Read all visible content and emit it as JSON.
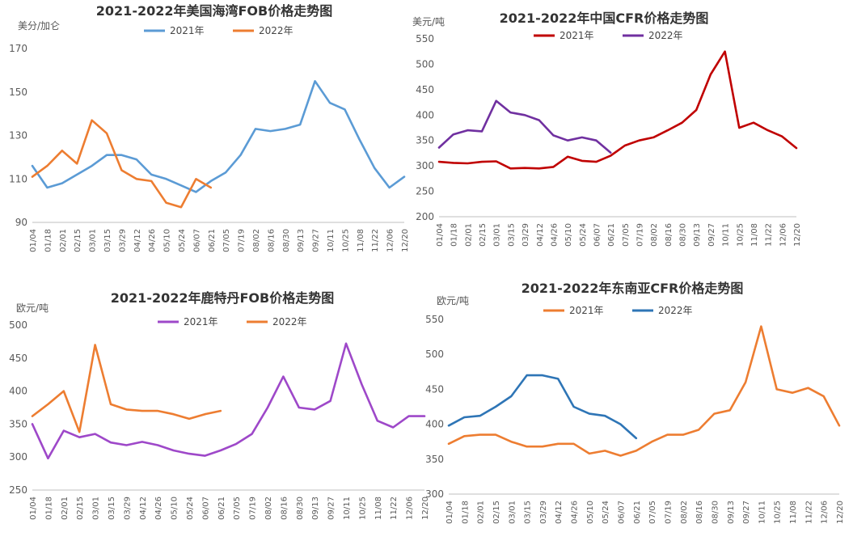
{
  "chart_data": [
    {
      "type": "line",
      "title": "2021-2022年美国海湾FOB价格走势图",
      "ylabel": "美分/加仑",
      "ylim": [
        90,
        170
      ],
      "yticks": [
        90,
        110,
        130,
        150,
        170
      ],
      "grid": false,
      "legend": "top",
      "x": [
        "01/04",
        "01/18",
        "02/01",
        "02/15",
        "03/01",
        "03/15",
        "03/29",
        "04/12",
        "04/26",
        "05/10",
        "05/24",
        "06/07",
        "06/21",
        "07/05",
        "07/19",
        "08/02",
        "08/16",
        "08/30",
        "09/13",
        "09/27",
        "10/11",
        "10/25",
        "11/08",
        "11/22",
        "12/06",
        "12/20"
      ],
      "series": [
        {
          "name": "2021年",
          "color": "#5B9BD5",
          "values": [
            116,
            106,
            108,
            112,
            116,
            121,
            121,
            119,
            112,
            110,
            107,
            104,
            109,
            113,
            121,
            133,
            132,
            133,
            135,
            155,
            145,
            142,
            128,
            115,
            106,
            111
          ]
        },
        {
          "name": "2022年",
          "color": "#ED7D31",
          "values": [
            111,
            116,
            123,
            117,
            137,
            131,
            114,
            110,
            109,
            99,
            97,
            110,
            106,
            null,
            null,
            null,
            null,
            null,
            null,
            null,
            null,
            null,
            null,
            null,
            null,
            null
          ]
        }
      ]
    },
    {
      "type": "line",
      "title": "2021-2022年中国CFR价格走势图",
      "ylabel": "美元/吨",
      "ylim": [
        200,
        550
      ],
      "yticks": [
        200,
        250,
        300,
        350,
        400,
        450,
        500,
        550
      ],
      "grid": false,
      "legend": "top",
      "x": [
        "01/04",
        "01/18",
        "02/01",
        "02/15",
        "03/01",
        "03/15",
        "03/29",
        "04/12",
        "04/26",
        "05/10",
        "05/24",
        "06/07",
        "06/21",
        "07/05",
        "07/19",
        "08/02",
        "08/16",
        "08/30",
        "09/13",
        "09/27",
        "10/11",
        "10/25",
        "11/08",
        "11/22",
        "12/06",
        "12/20"
      ],
      "series": [
        {
          "name": "2021年",
          "color": "#C00000",
          "values": [
            308,
            306,
            305,
            308,
            309,
            295,
            296,
            295,
            298,
            318,
            310,
            308,
            320,
            340,
            350,
            356,
            370,
            385,
            410,
            480,
            525,
            375,
            385,
            370,
            358,
            335
          ]
        },
        {
          "name": "2022年",
          "color": "#7030A0",
          "values": [
            336,
            362,
            370,
            368,
            428,
            405,
            400,
            390,
            360,
            350,
            356,
            350,
            326,
            null,
            null,
            null,
            null,
            null,
            null,
            null,
            null,
            null,
            null,
            null,
            null,
            null
          ]
        }
      ]
    },
    {
      "type": "line",
      "title": "2021-2022年鹿特丹FOB价格走势图",
      "ylabel": "欧元/吨",
      "ylim": [
        250,
        500
      ],
      "yticks": [
        250,
        300,
        350,
        400,
        450,
        500
      ],
      "grid": false,
      "legend": "top",
      "x": [
        "01/04",
        "01/18",
        "02/01",
        "02/15",
        "03/01",
        "03/15",
        "03/29",
        "04/12",
        "04/26",
        "05/10",
        "05/24",
        "06/07",
        "06/21",
        "07/05",
        "07/19",
        "08/02",
        "08/16",
        "08/30",
        "09/13",
        "09/27",
        "10/11",
        "10/25",
        "11/08",
        "11/22",
        "12/06",
        "12/20"
      ],
      "series": [
        {
          "name": "2021年",
          "color": "#9E48C9",
          "values": [
            350,
            298,
            340,
            330,
            335,
            322,
            318,
            323,
            318,
            310,
            305,
            302,
            310,
            320,
            335,
            375,
            422,
            375,
            372,
            385,
            472,
            410,
            355,
            345,
            362,
            362
          ]
        },
        {
          "name": "2022年",
          "color": "#ED7D31",
          "values": [
            362,
            380,
            400,
            338,
            470,
            380,
            372,
            370,
            370,
            365,
            358,
            365,
            370,
            null,
            null,
            null,
            null,
            null,
            null,
            null,
            null,
            null,
            null,
            null,
            null,
            null
          ]
        }
      ]
    },
    {
      "type": "line",
      "title": "2021-2022年东南亚CFR价格走势图",
      "ylabel": "欧元/吨",
      "ylim": [
        300,
        550
      ],
      "yticks": [
        300,
        350,
        400,
        450,
        500,
        550
      ],
      "grid": false,
      "legend": "top",
      "x": [
        "01/04",
        "01/18",
        "02/01",
        "02/15",
        "03/01",
        "03/15",
        "03/29",
        "04/12",
        "04/26",
        "05/10",
        "05/24",
        "06/07",
        "06/21",
        "07/05",
        "07/19",
        "08/02",
        "08/16",
        "08/30",
        "09/13",
        "09/27",
        "10/11",
        "10/25",
        "11/08",
        "11/22",
        "12/06",
        "12/20"
      ],
      "series": [
        {
          "name": "2021年",
          "color": "#ED7D31",
          "values": [
            372,
            383,
            385,
            385,
            375,
            368,
            368,
            372,
            372,
            358,
            362,
            355,
            362,
            375,
            385,
            385,
            392,
            415,
            420,
            460,
            540,
            450,
            445,
            452,
            440,
            398
          ]
        },
        {
          "name": "2022年",
          "color": "#2E75B6",
          "values": [
            398,
            410,
            412,
            425,
            440,
            470,
            470,
            465,
            425,
            415,
            412,
            400,
            380,
            null,
            null,
            null,
            null,
            null,
            null,
            null,
            null,
            null,
            null,
            null,
            null,
            null
          ]
        }
      ]
    }
  ]
}
